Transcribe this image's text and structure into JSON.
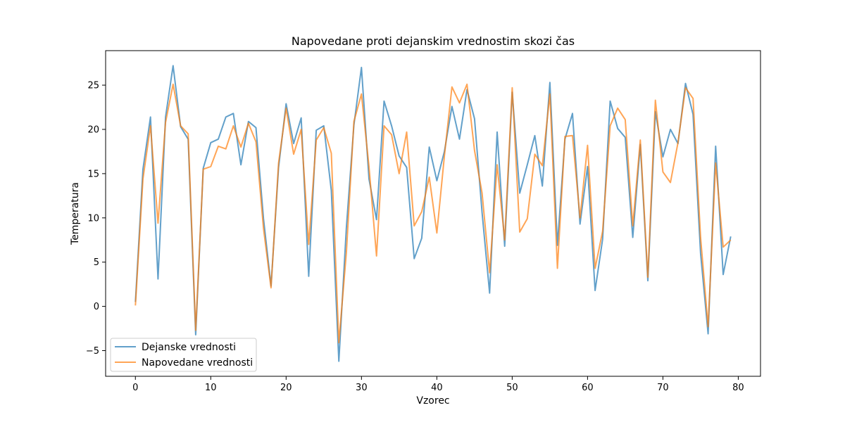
{
  "chart_data": {
    "type": "line",
    "title": "Napovedane proti dejanskim vrednostim skozi čas",
    "xlabel": "Vzorec",
    "ylabel": "Temperatura",
    "xlim": [
      -3.95,
      82.95
    ],
    "ylim": [
      -7.9,
      28.9
    ],
    "x_ticks": [
      0,
      10,
      20,
      30,
      40,
      50,
      60,
      70,
      80
    ],
    "y_ticks": [
      -5,
      0,
      5,
      10,
      15,
      20,
      25
    ],
    "grid": false,
    "legend_position": "lower-left",
    "x": [
      0,
      1,
      2,
      3,
      4,
      5,
      6,
      7,
      8,
      9,
      10,
      11,
      12,
      13,
      14,
      15,
      16,
      17,
      18,
      19,
      20,
      21,
      22,
      23,
      24,
      25,
      26,
      27,
      28,
      29,
      30,
      31,
      32,
      33,
      34,
      35,
      36,
      37,
      38,
      39,
      40,
      41,
      42,
      43,
      44,
      45,
      46,
      47,
      48,
      49,
      50,
      51,
      52,
      53,
      54,
      55,
      56,
      57,
      58,
      59,
      60,
      61,
      62,
      63,
      64,
      65,
      66,
      67,
      68,
      69,
      70,
      71,
      72,
      73,
      74,
      75,
      76,
      77,
      78,
      79
    ],
    "series": [
      {
        "name": "Dejanske vrednosti",
        "color": "#1f77b4",
        "values": [
          0.5,
          15.5,
          21.4,
          3.1,
          21.4,
          27.2,
          20.3,
          18.9,
          -3.2,
          15.6,
          18.5,
          18.9,
          21.4,
          21.8,
          16.0,
          20.9,
          20.2,
          9.9,
          2.3,
          15.7,
          22.9,
          18.4,
          21.3,
          3.4,
          19.9,
          20.4,
          13.1,
          -6.2,
          8.9,
          20.5,
          27.0,
          14.4,
          9.8,
          23.2,
          20.4,
          17.0,
          15.7,
          5.4,
          7.7,
          18.0,
          14.2,
          17.5,
          22.6,
          18.9,
          24.5,
          21.2,
          10.6,
          1.5,
          19.7,
          6.8,
          24.2,
          12.8,
          16.0,
          19.3,
          13.6,
          25.3,
          6.9,
          18.9,
          21.8,
          9.3,
          15.8,
          1.8,
          7.6,
          23.2,
          20.1,
          19.1,
          7.8,
          18.3,
          2.9,
          22.0,
          16.9,
          20.0,
          18.4,
          25.2,
          21.7,
          6.0,
          -3.1,
          18.1,
          3.6,
          7.9
        ]
      },
      {
        "name": "Napovedane vrednosti",
        "color": "#ff7f0e",
        "values": [
          0.1,
          14.4,
          20.4,
          9.4,
          20.8,
          25.1,
          20.4,
          19.5,
          -2.7,
          15.5,
          15.8,
          18.1,
          17.8,
          20.4,
          18.0,
          20.7,
          18.6,
          8.8,
          2.1,
          16.2,
          22.4,
          17.2,
          20.0,
          7.0,
          18.8,
          20.2,
          17.3,
          -4.1,
          6.1,
          20.9,
          24.0,
          15.8,
          5.7,
          20.4,
          19.4,
          15.0,
          19.7,
          9.1,
          10.7,
          14.6,
          8.3,
          17.0,
          24.8,
          23.0,
          25.1,
          17.6,
          12.8,
          3.8,
          16.0,
          7.5,
          24.7,
          8.4,
          9.9,
          17.2,
          15.9,
          24.0,
          4.3,
          19.2,
          19.3,
          10.0,
          18.2,
          4.3,
          8.5,
          20.4,
          22.4,
          21.1,
          9.1,
          18.8,
          3.3,
          23.3,
          15.2,
          14.0,
          18.5,
          24.7,
          23.5,
          7.8,
          -2.3,
          16.2,
          6.7,
          7.5
        ]
      }
    ]
  }
}
